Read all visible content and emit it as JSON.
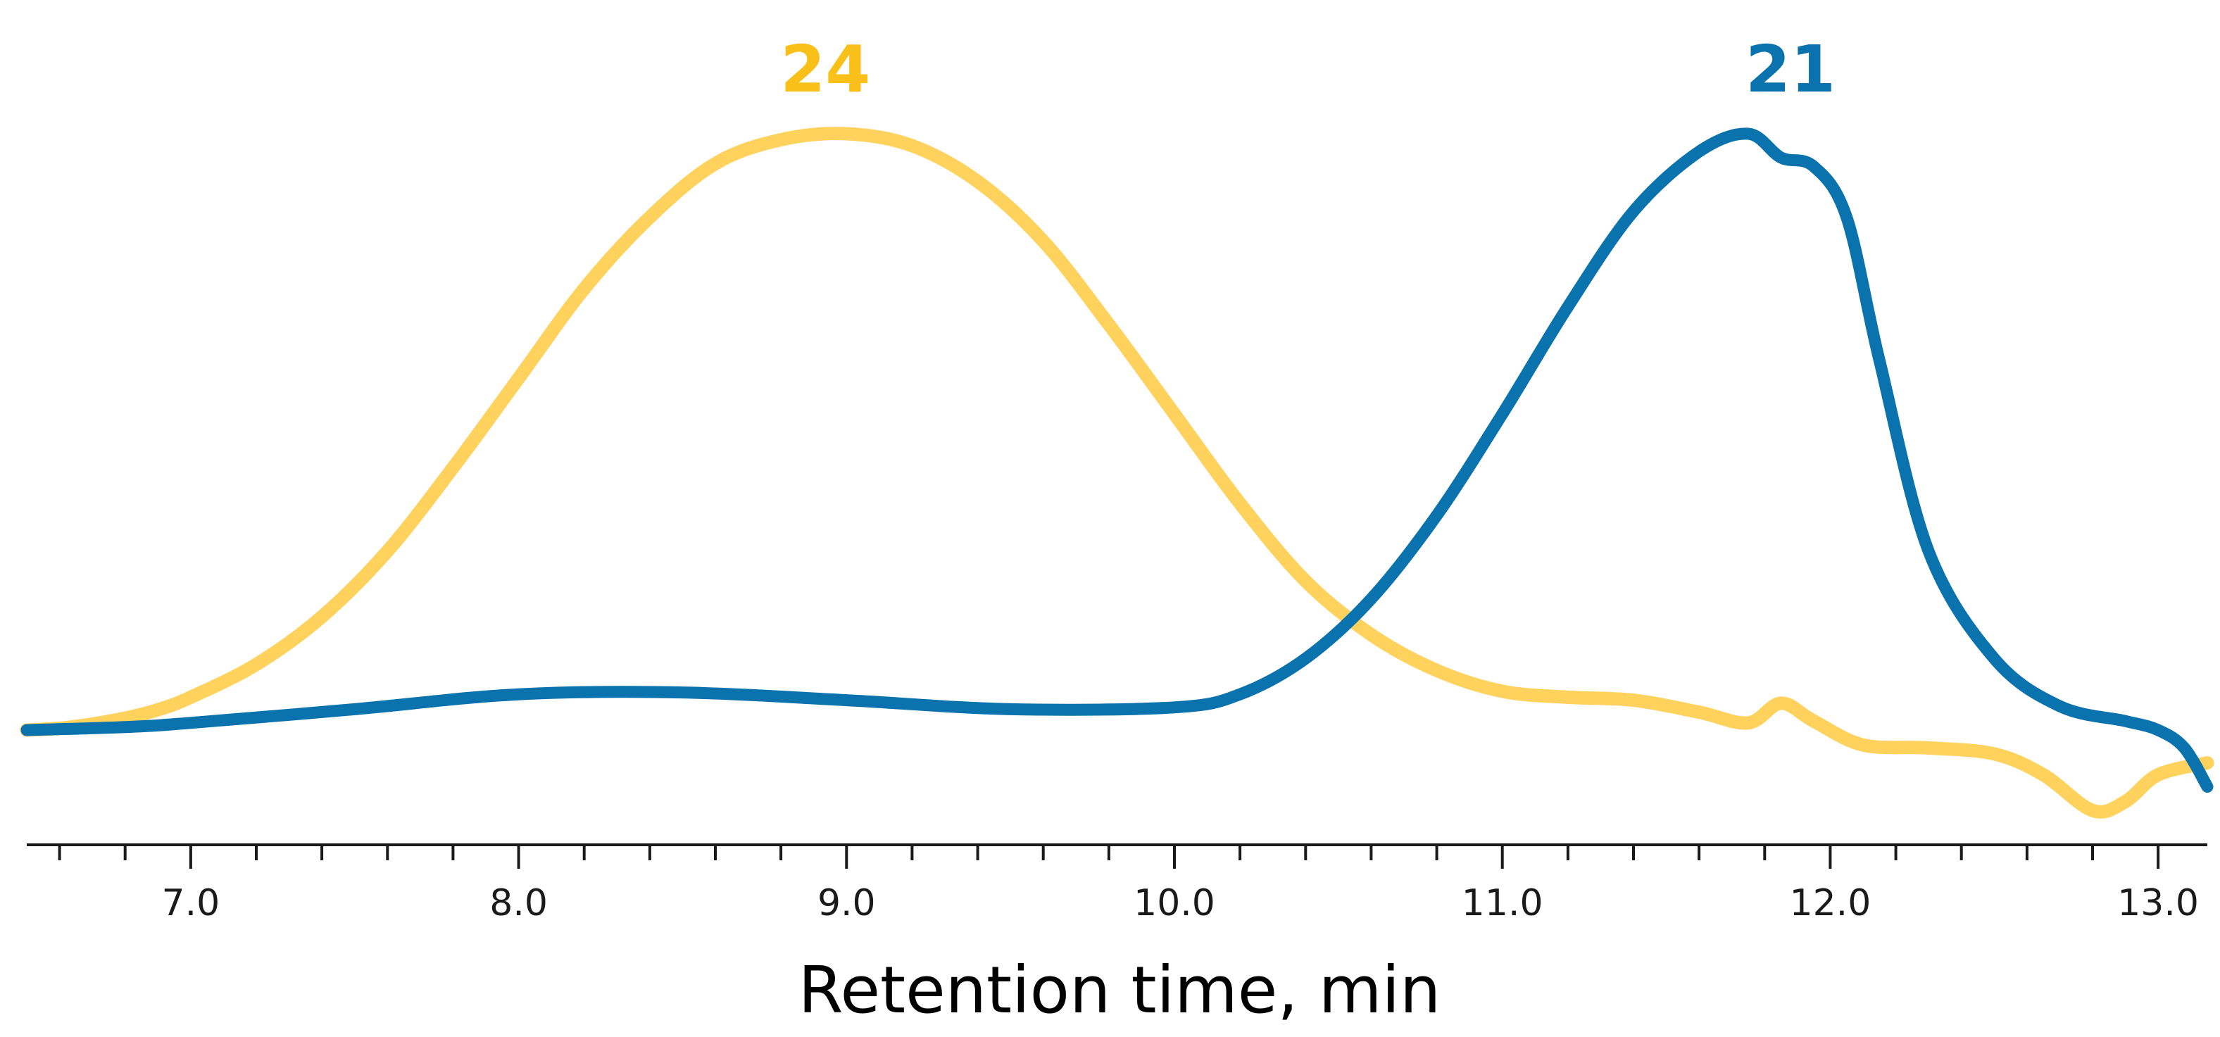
{
  "chart_data": {
    "type": "line",
    "xlabel": "Retention time, min",
    "xlim": [
      6.5,
      13.15
    ],
    "x_ticks": [
      7.0,
      8.0,
      9.0,
      10.0,
      11.0,
      12.0,
      13.0
    ],
    "x_tick_labels": [
      "7.0",
      "8.0",
      "9.0",
      "10.0",
      "11.0",
      "12.0",
      "13.0"
    ],
    "x_minor_step": 0.2,
    "grid": false,
    "y_axis_shown": false,
    "ylim": [
      -0.2,
      1.05
    ],
    "series": [
      {
        "name": "24",
        "color": "#FFD25E",
        "label_color": "#F9C01A",
        "points": [
          [
            6.5,
            0.0
          ],
          [
            6.6,
            0.003
          ],
          [
            6.7,
            0.01
          ],
          [
            6.8,
            0.02
          ],
          [
            6.9,
            0.034
          ],
          [
            7.0,
            0.055
          ],
          [
            7.2,
            0.11
          ],
          [
            7.4,
            0.19
          ],
          [
            7.6,
            0.3
          ],
          [
            7.8,
            0.44
          ],
          [
            8.0,
            0.59
          ],
          [
            8.2,
            0.74
          ],
          [
            8.4,
            0.86
          ],
          [
            8.6,
            0.95
          ],
          [
            8.8,
            0.99
          ],
          [
            9.0,
            1.0
          ],
          [
            9.2,
            0.98
          ],
          [
            9.4,
            0.92
          ],
          [
            9.6,
            0.82
          ],
          [
            9.8,
            0.68
          ],
          [
            10.0,
            0.53
          ],
          [
            10.2,
            0.38
          ],
          [
            10.4,
            0.25
          ],
          [
            10.6,
            0.16
          ],
          [
            10.8,
            0.1
          ],
          [
            11.0,
            0.065
          ],
          [
            11.2,
            0.055
          ],
          [
            11.4,
            0.05
          ],
          [
            11.6,
            0.03
          ],
          [
            11.75,
            0.012
          ],
          [
            11.85,
            0.045
          ],
          [
            11.95,
            0.015
          ],
          [
            12.1,
            -0.025
          ],
          [
            12.3,
            -0.03
          ],
          [
            12.5,
            -0.04
          ],
          [
            12.65,
            -0.075
          ],
          [
            12.8,
            -0.135
          ],
          [
            12.9,
            -0.12
          ],
          [
            13.0,
            -0.075
          ],
          [
            13.15,
            -0.055
          ]
        ]
      },
      {
        "name": "21",
        "color": "#0A73AE",
        "label_color": "#0A73AE",
        "points": [
          [
            6.5,
            0.0
          ],
          [
            6.8,
            0.005
          ],
          [
            7.0,
            0.012
          ],
          [
            7.5,
            0.035
          ],
          [
            8.0,
            0.06
          ],
          [
            8.5,
            0.063
          ],
          [
            9.0,
            0.05
          ],
          [
            9.5,
            0.035
          ],
          [
            10.0,
            0.038
          ],
          [
            10.2,
            0.06
          ],
          [
            10.4,
            0.12
          ],
          [
            10.6,
            0.22
          ],
          [
            10.8,
            0.36
          ],
          [
            11.0,
            0.53
          ],
          [
            11.2,
            0.71
          ],
          [
            11.4,
            0.87
          ],
          [
            11.6,
            0.97
          ],
          [
            11.75,
            1.0
          ],
          [
            11.85,
            0.96
          ],
          [
            11.95,
            0.945
          ],
          [
            12.05,
            0.86
          ],
          [
            12.15,
            0.62
          ],
          [
            12.3,
            0.3
          ],
          [
            12.5,
            0.12
          ],
          [
            12.7,
            0.04
          ],
          [
            12.9,
            0.015
          ],
          [
            13.0,
            0.0
          ],
          [
            13.08,
            -0.03
          ],
          [
            13.15,
            -0.095
          ]
        ]
      }
    ]
  }
}
